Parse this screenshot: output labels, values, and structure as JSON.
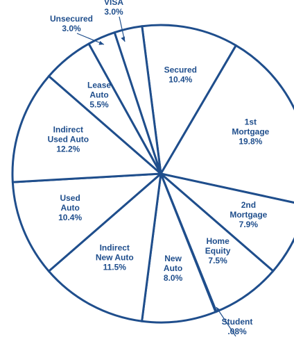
{
  "chart_data": {
    "type": "pie",
    "categories": [
      "Secured",
      "1st Mortgage",
      "2nd Mortgage",
      "Home Equity",
      "Student",
      "New Auto",
      "Indirect New Auto",
      "Used Auto",
      "Indirect Used Auto",
      "Lease Auto",
      "Unsecured",
      "VISA"
    ],
    "values": [
      10.4,
      19.8,
      7.9,
      7.5,
      0.08,
      8.0,
      11.5,
      10.4,
      12.2,
      5.5,
      3.0,
      3.0
    ],
    "value_labels": [
      "10.4%",
      "19.8%",
      "7.9%",
      "7.5%",
      ".08%",
      "8.0%",
      "11.5%",
      "10.4%",
      "12.2%",
      "5.5%",
      "3.0%",
      "3.0%"
    ],
    "color": "#1f4e8c"
  }
}
